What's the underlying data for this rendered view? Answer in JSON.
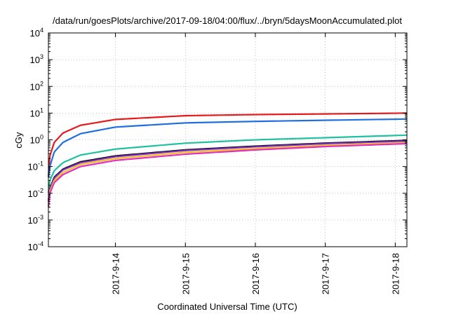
{
  "chart_data": {
    "type": "line",
    "title": "/data/run/goesPlots/archive/2017-09-18/04:00/flux/../bryn/5daysMoonAccumulated.plot",
    "xlabel": "Coordinated Universal Time (UTC)",
    "ylabel": "cGy",
    "y_scale": "log",
    "ylim": [
      0.0001,
      10000
    ],
    "xlim": [
      "2017-09-13 01:00",
      "2017-09-18 04:00"
    ],
    "grid": true,
    "legend": "none",
    "x_ticks": [
      "2017-9-14",
      "2017-9-15",
      "2017-9-16",
      "2017-9-17",
      "2017-9-18"
    ],
    "y_ticks": [
      {
        "base": "10",
        "exp": "-4",
        "value": 0.0001
      },
      {
        "base": "10",
        "exp": "-3",
        "value": 0.001
      },
      {
        "base": "10",
        "exp": "-2",
        "value": 0.01
      },
      {
        "base": "10",
        "exp": "-1",
        "value": 0.1
      },
      {
        "base": "10",
        "exp": "0",
        "value": 1
      },
      {
        "base": "10",
        "exp": "1",
        "value": 10
      },
      {
        "base": "10",
        "exp": "2",
        "value": 100
      },
      {
        "base": "10",
        "exp": "3",
        "value": 1000
      },
      {
        "base": "10",
        "exp": "4",
        "value": 10000
      }
    ],
    "x": [
      "2017-09-13 01:00",
      "2017-09-13 01:30",
      "2017-09-13 03:00",
      "2017-09-13 06:00",
      "2017-09-13 12:00",
      "2017-09-14 00:00",
      "2017-09-15 00:00",
      "2017-09-16 00:00",
      "2017-09-17 00:00",
      "2017-09-18 04:00"
    ],
    "series": [
      {
        "color": "#e41a1c",
        "values": [
          0.04,
          0.25,
          0.8,
          1.8,
          3.5,
          5.8,
          8.0,
          8.8,
          9.3,
          10.0
        ]
      },
      {
        "color": "#1f6fe0",
        "values": [
          0.04,
          0.1,
          0.35,
          0.8,
          1.7,
          3.0,
          4.3,
          4.9,
          5.4,
          6.0
        ]
      },
      {
        "color": "#20c0a0",
        "values": [
          0.01,
          0.03,
          0.07,
          0.14,
          0.27,
          0.45,
          0.75,
          1.0,
          1.2,
          1.5
        ]
      },
      {
        "color": "#000000",
        "values": [
          0.005,
          0.015,
          0.04,
          0.08,
          0.15,
          0.25,
          0.42,
          0.58,
          0.75,
          0.95
        ]
      },
      {
        "color": "#7b2fbe",
        "values": [
          0.005,
          0.014,
          0.037,
          0.075,
          0.14,
          0.235,
          0.4,
          0.55,
          0.72,
          0.9
        ]
      },
      {
        "color": "#f0c020",
        "values": [
          0.004,
          0.012,
          0.03,
          0.06,
          0.12,
          0.2,
          0.34,
          0.47,
          0.62,
          0.78
        ]
      },
      {
        "color": "#e030c0",
        "values": [
          0.003,
          0.01,
          0.025,
          0.05,
          0.1,
          0.17,
          0.29,
          0.42,
          0.56,
          0.72
        ]
      }
    ]
  }
}
